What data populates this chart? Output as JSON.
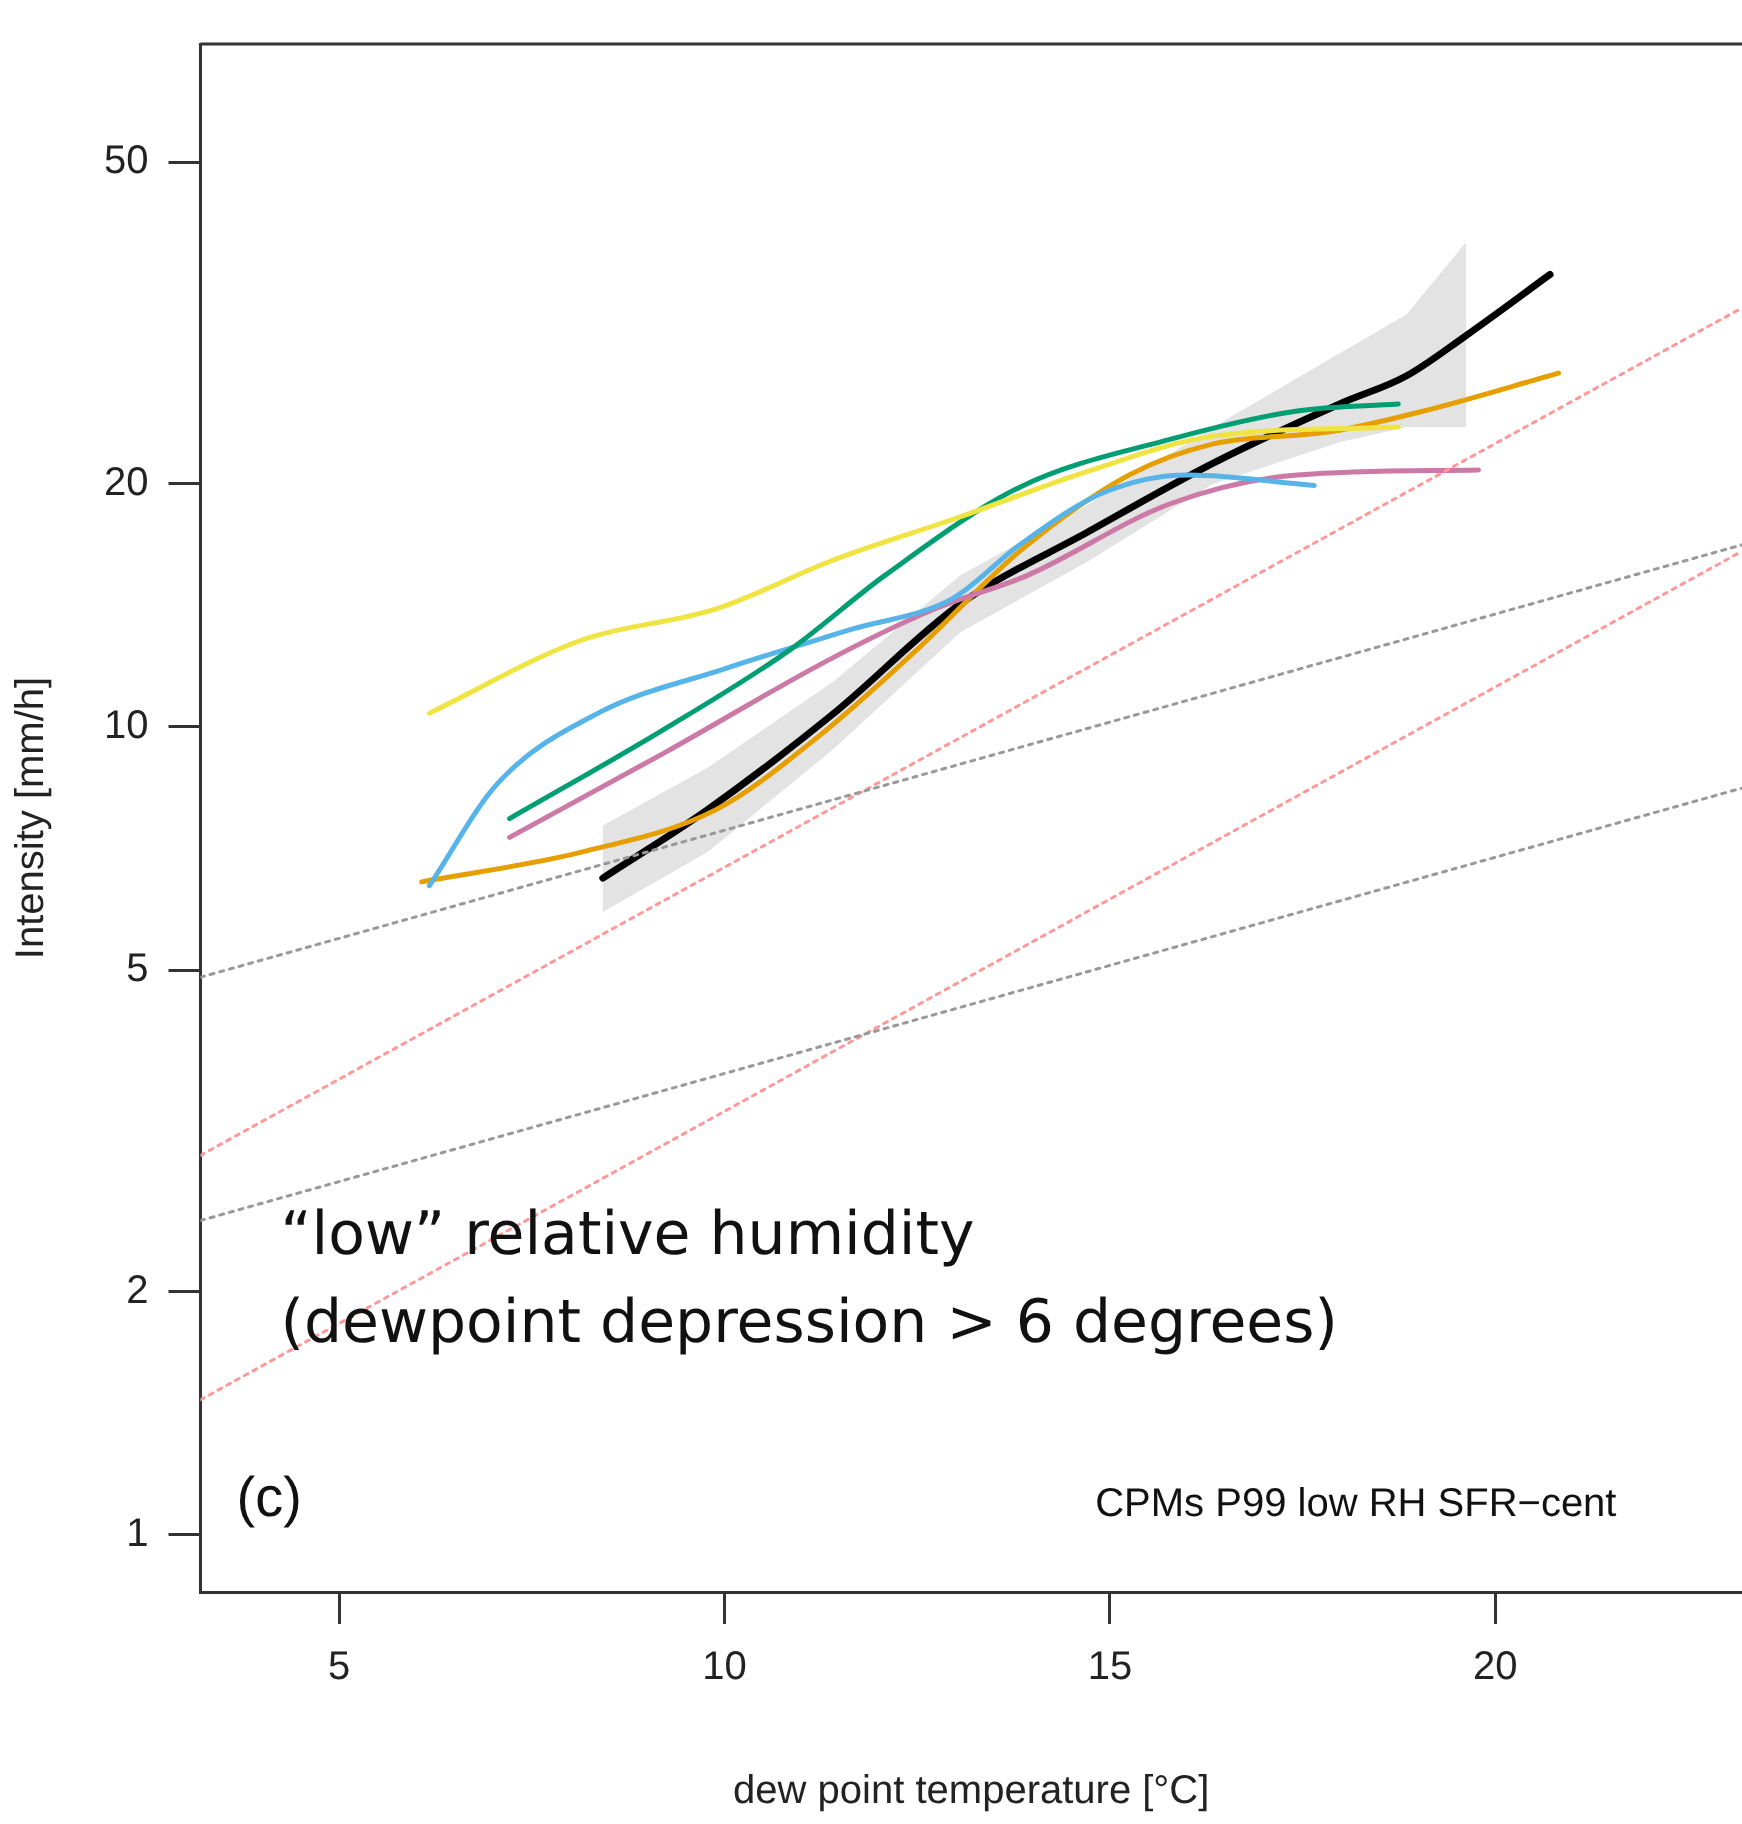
{
  "chart_data": {
    "type": "line",
    "xlabel": "dew point temperature [°C]",
    "ylabel": "Intensity [mm/h]",
    "log": "y",
    "grid": false,
    "legend": false,
    "marker": "none",
    "xlim": [
      3.2,
      23.2
    ],
    "xticks": [
      5,
      10,
      15,
      20
    ],
    "ylim": [
      0.85,
      70
    ],
    "yticks": [
      1,
      2,
      5,
      10,
      20,
      50
    ],
    "annotations": [
      "“low” relative humidity\n(dewpoint depression > 6 degrees)",
      "(c)",
      "CPMs P99 low RH SFR−cent"
    ],
    "series": [
      {
        "color": "#999999",
        "line_style": "dotted",
        "x": [
          3.2,
          23.2
        ],
        "values": [
          4.9,
          16.8
        ]
      },
      {
        "color": "#999999",
        "line_style": "dotted",
        "x": [
          3.2,
          23.2
        ],
        "values": [
          2.45,
          8.4
        ]
      },
      {
        "color": "#ff9999",
        "line_style": "dotted",
        "x": [
          3.2,
          23.2
        ],
        "values": [
          2.95,
          33
        ]
      },
      {
        "color": "#ff9999",
        "line_style": "dotted",
        "x": [
          3.2,
          23.2
        ],
        "values": [
          1.47,
          16.5
        ]
      },
      {
        "color": "#f0e442",
        "x": [
          6.17,
          8.14,
          9.89,
          11.42,
          13.06,
          14.7,
          16.34,
          18.74
        ],
        "values": [
          10.4,
          12.8,
          14.0,
          16.1,
          18.2,
          20.7,
          22.9,
          23.5
        ]
      },
      {
        "color": "#009e73",
        "x": [
          7.21,
          9.23,
          10.87,
          12.08,
          13.83,
          15.79,
          17.43,
          18.74
        ],
        "values": [
          7.7,
          9.95,
          12.5,
          15.4,
          19.8,
          22.7,
          24.6,
          25.1
        ]
      },
      {
        "color": "#56b4e9",
        "x": [
          6.17,
          7.05,
          8.36,
          10.0,
          11.64,
          12.95,
          13.83,
          14.92,
          16.01,
          17.65
        ],
        "values": [
          6.36,
          8.5,
          10.4,
          11.8,
          13.2,
          14.4,
          16.8,
          19.5,
          20.5,
          19.9
        ]
      },
      {
        "color": "#cc79a7",
        "x": [
          7.21,
          9.23,
          11.42,
          12.73,
          13.93,
          15.79,
          17.43,
          19.78
        ],
        "values": [
          7.3,
          9.3,
          12.2,
          14.0,
          15.4,
          18.9,
          20.5,
          20.8
        ]
      },
      {
        "color": "#e69f00",
        "x": [
          6.07,
          8.14,
          9.89,
          11.2,
          12.51,
          13.83,
          15.25,
          16.34,
          17.87,
          19.07,
          20.82
        ],
        "values": [
          6.43,
          7.0,
          7.9,
          9.7,
          12.5,
          16.5,
          20.5,
          22.4,
          23.2,
          24.6,
          27.4
        ]
      },
      {
        "color": "#000000",
        "x": [
          8.42,
          9.78,
          11.42,
          13.06,
          14.7,
          16.34,
          17.98,
          18.85,
          19.62,
          20.71
        ],
        "values": [
          6.5,
          7.9,
          10.4,
          14.2,
          17.4,
          21.2,
          25.1,
          27.2,
          30.5,
          36.3
        ],
        "lower": [
          5.9,
          7.0,
          9.4,
          13.1,
          16.0,
          20.0,
          22.5,
          23.5,
          23.5,
          null
        ],
        "upper": [
          7.55,
          8.9,
          11.4,
          15.4,
          18.8,
          23.5,
          29,
          32.4,
          39.8,
          null
        ]
      }
    ]
  }
}
